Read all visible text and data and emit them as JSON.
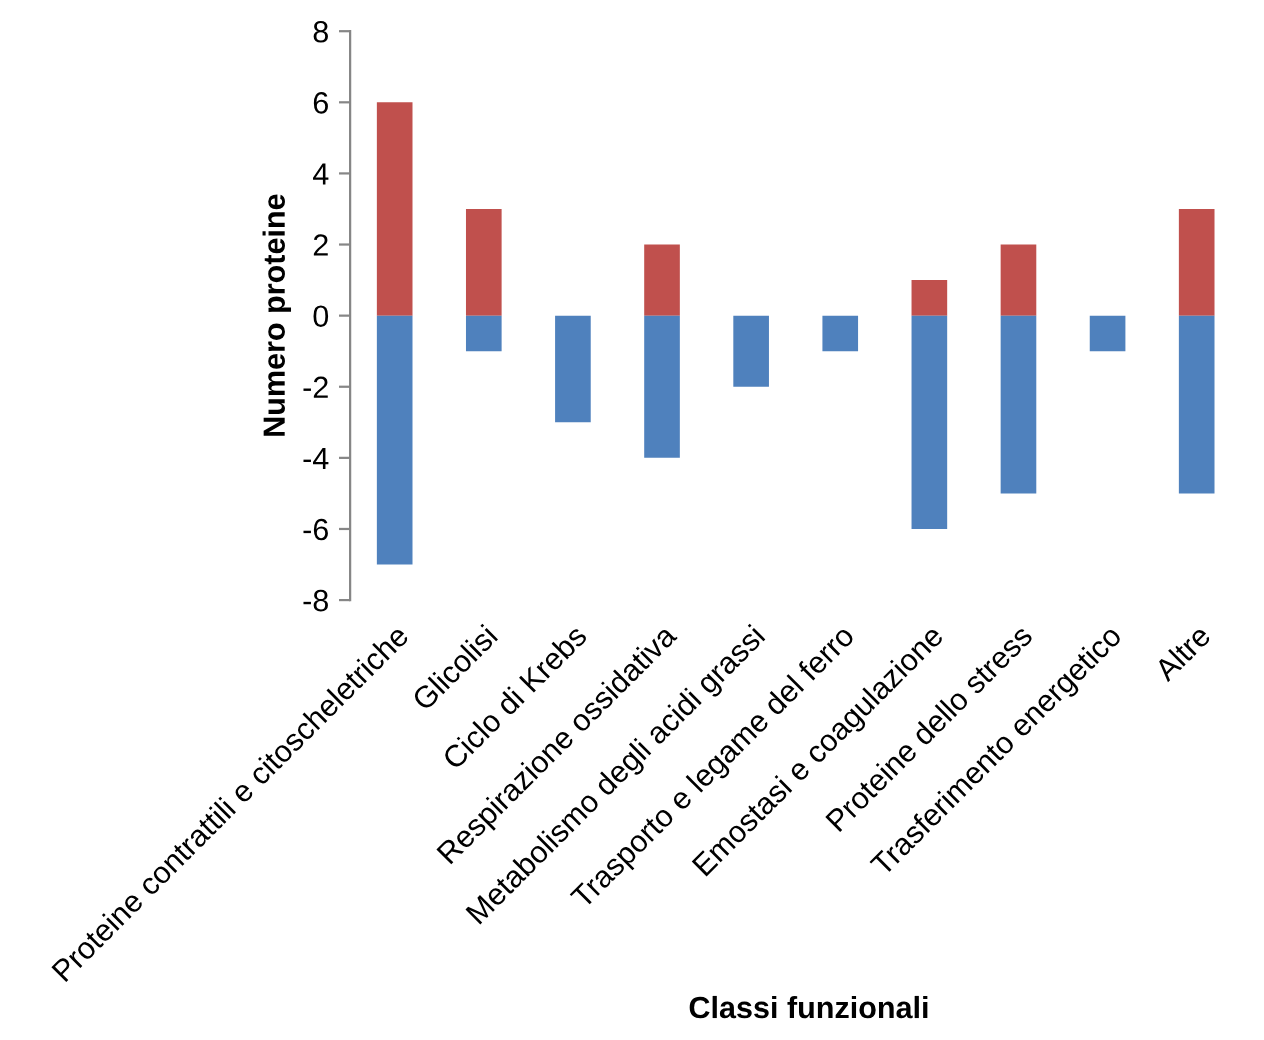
{
  "chart_data": {
    "type": "bar",
    "stacked": true,
    "xlabel": "Classi funzionali",
    "ylabel": "Numero proteine",
    "categories": [
      "Proteine contrattili e citoscheletriche",
      "Glicolisi",
      "Ciclo di Krebs",
      "Respirazione ossidativa",
      "Metabolismo degli acidi grassi",
      "Trasporto e legame del ferro",
      "Emostasi e coagulazione",
      "Proteine dello stress",
      "Trasferimento energetico",
      "Altre"
    ],
    "series": [
      {
        "color": "#c0504d",
        "values": [
          6,
          3,
          null,
          2,
          null,
          null,
          1,
          2,
          null,
          3
        ]
      },
      {
        "color": "#4f81bd",
        "values": [
          -7,
          -1,
          -3,
          -4,
          -2,
          -1,
          -6,
          -5,
          -1,
          -5
        ]
      }
    ],
    "ylim": [
      -8,
      8
    ],
    "yticks": [
      -8,
      -6,
      -4,
      -2,
      0,
      2,
      4,
      6,
      8
    ],
    "grid": false,
    "legend": false
  }
}
